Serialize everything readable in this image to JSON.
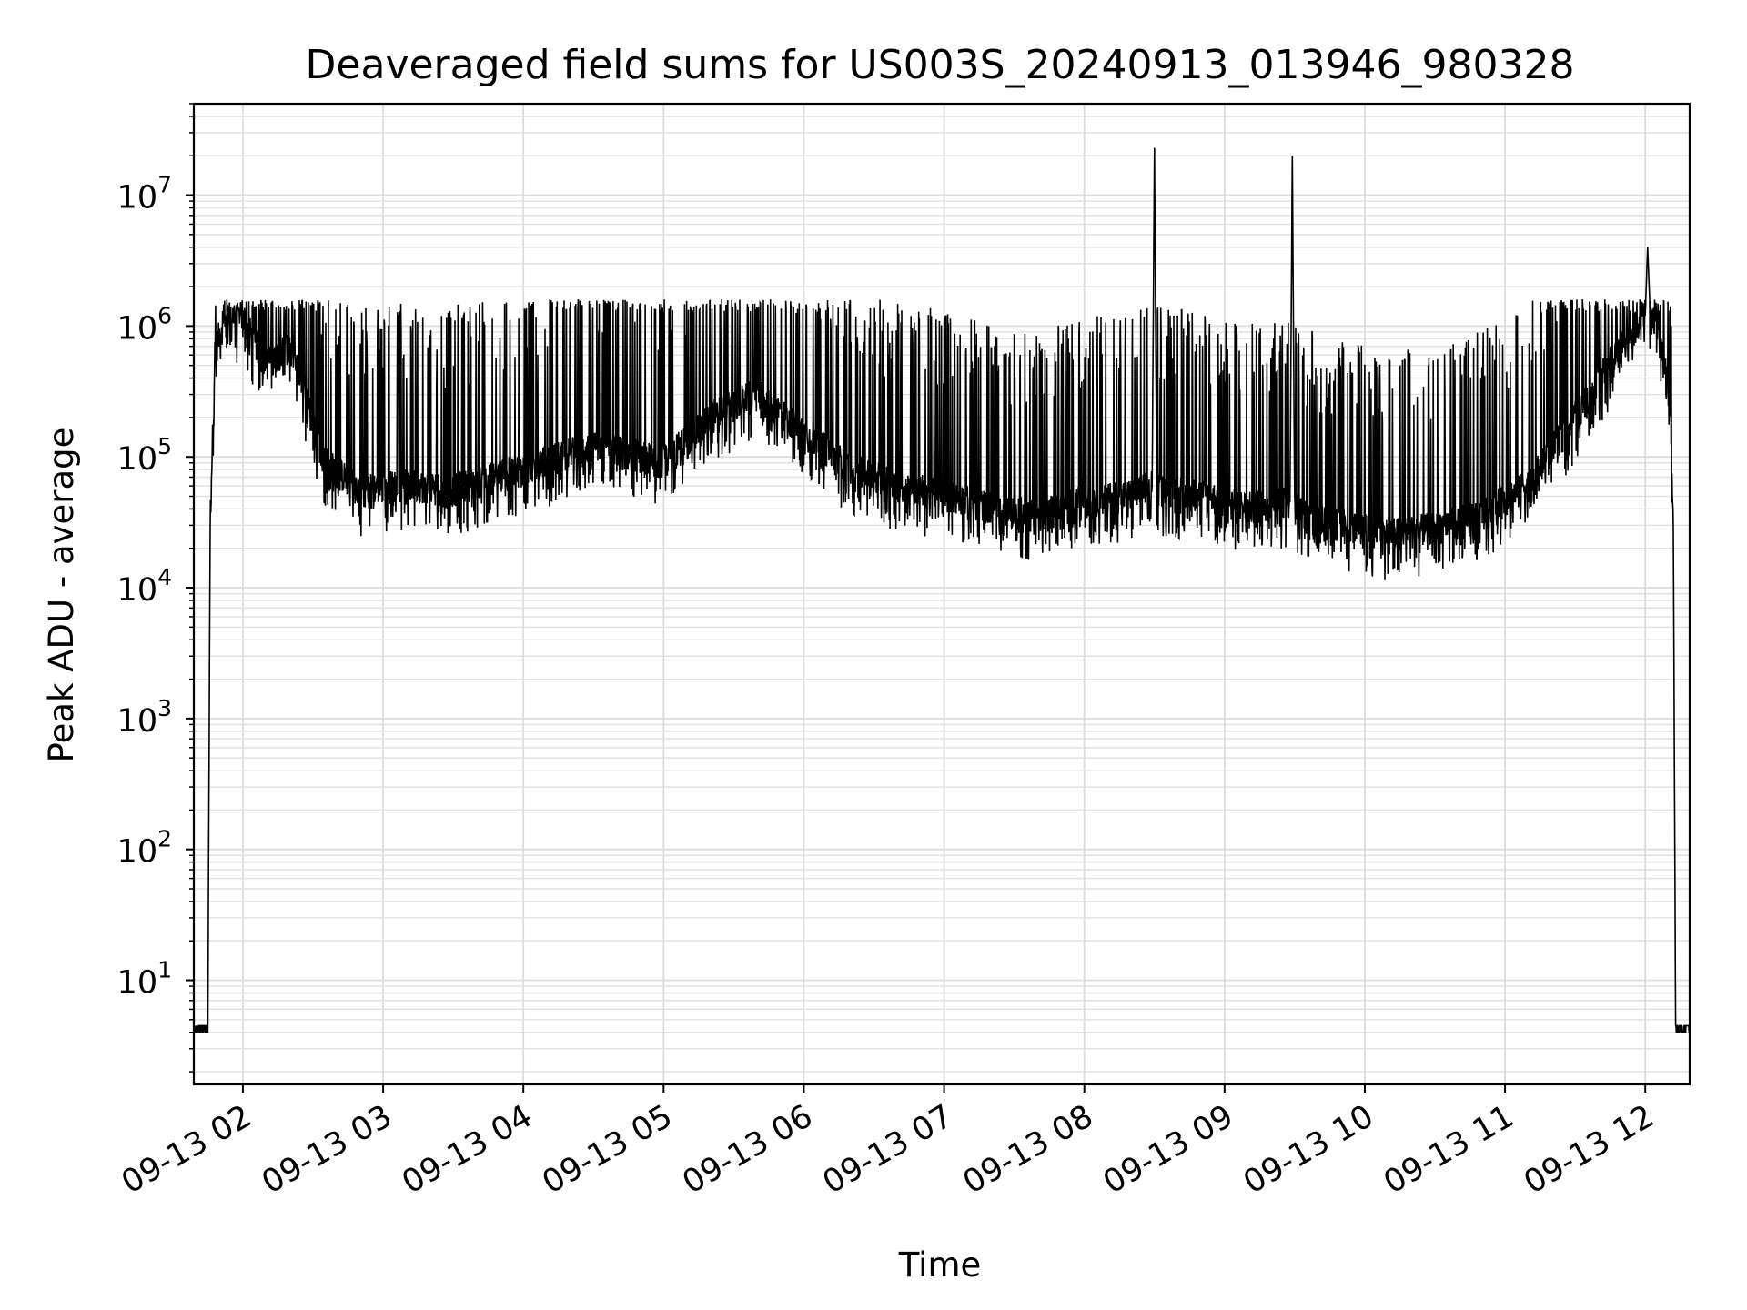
{
  "chart_data": {
    "type": "line",
    "title": "Deaveraged field sums for US003S_20240913_013946_980328",
    "xlabel": "Time",
    "ylabel": "Peak ADU - average",
    "yscale": "log",
    "ylim": [
      1.6,
      50000000
    ],
    "xlim": [
      "09-13 01:39",
      "09-13 12:19"
    ],
    "grid": true,
    "x_tick_labels": [
      "09-13 02",
      "09-13 03",
      "09-13 04",
      "09-13 05",
      "09-13 06",
      "09-13 07",
      "09-13 08",
      "09-13 09",
      "09-13 10",
      "09-13 11",
      "09-13 12"
    ],
    "y_tick_labels": [
      {
        "base": "10",
        "exp": "1"
      },
      {
        "base": "10",
        "exp": "2"
      },
      {
        "base": "10",
        "exp": "3"
      },
      {
        "base": "10",
        "exp": "4"
      },
      {
        "base": "10",
        "exp": "5"
      },
      {
        "base": "10",
        "exp": "6"
      },
      {
        "base": "10",
        "exp": "7"
      }
    ],
    "series": [
      {
        "color": "#000000",
        "x": [
          "09-13 01:39",
          "09-13 01:45",
          "09-13 01:46",
          "09-13 01:48",
          "09-13 01:52",
          "09-13 02:00",
          "09-13 02:10",
          "09-13 02:20",
          "09-13 02:35",
          "09-13 02:50",
          "09-13 03:10",
          "09-13 03:30",
          "09-13 04:00",
          "09-13 04:30",
          "09-13 05:00",
          "09-13 05:20",
          "09-13 05:40",
          "09-13 06:00",
          "09-13 06:20",
          "09-13 06:40",
          "09-13 07:00",
          "09-13 07:20",
          "09-13 07:40",
          "09-13 08:00",
          "09-13 08:20",
          "09-13 08:29",
          "09-13 08:30",
          "09-13 08:31",
          "09-13 08:50",
          "09-13 09:10",
          "09-13 09:28",
          "09-13 09:29",
          "09-13 09:30",
          "09-13 09:50",
          "09-13 10:10",
          "09-13 10:30",
          "09-13 10:50",
          "09-13 11:10",
          "09-13 11:30",
          "09-13 11:50",
          "09-13 12:00",
          "09-13 12:01",
          "09-13 12:02",
          "09-13 12:05",
          "09-13 12:10",
          "09-13 12:12",
          "09-13 12:13",
          "09-13 12:19"
        ],
        "y": [
          4,
          4,
          30000,
          600000,
          1200000,
          1100000,
          500000,
          700000,
          90000,
          55000,
          60000,
          55000,
          80000,
          120000,
          90000,
          200000,
          300000,
          150000,
          80000,
          60000,
          50000,
          40000,
          35000,
          45000,
          50000,
          60000,
          23000000,
          55000,
          50000,
          40000,
          45000,
          20000000,
          40000,
          30000,
          25000,
          28000,
          35000,
          60000,
          200000,
          700000,
          1200000,
          4000000,
          1400000,
          1200000,
          300000,
          30000,
          4,
          4
        ]
      }
    ]
  }
}
